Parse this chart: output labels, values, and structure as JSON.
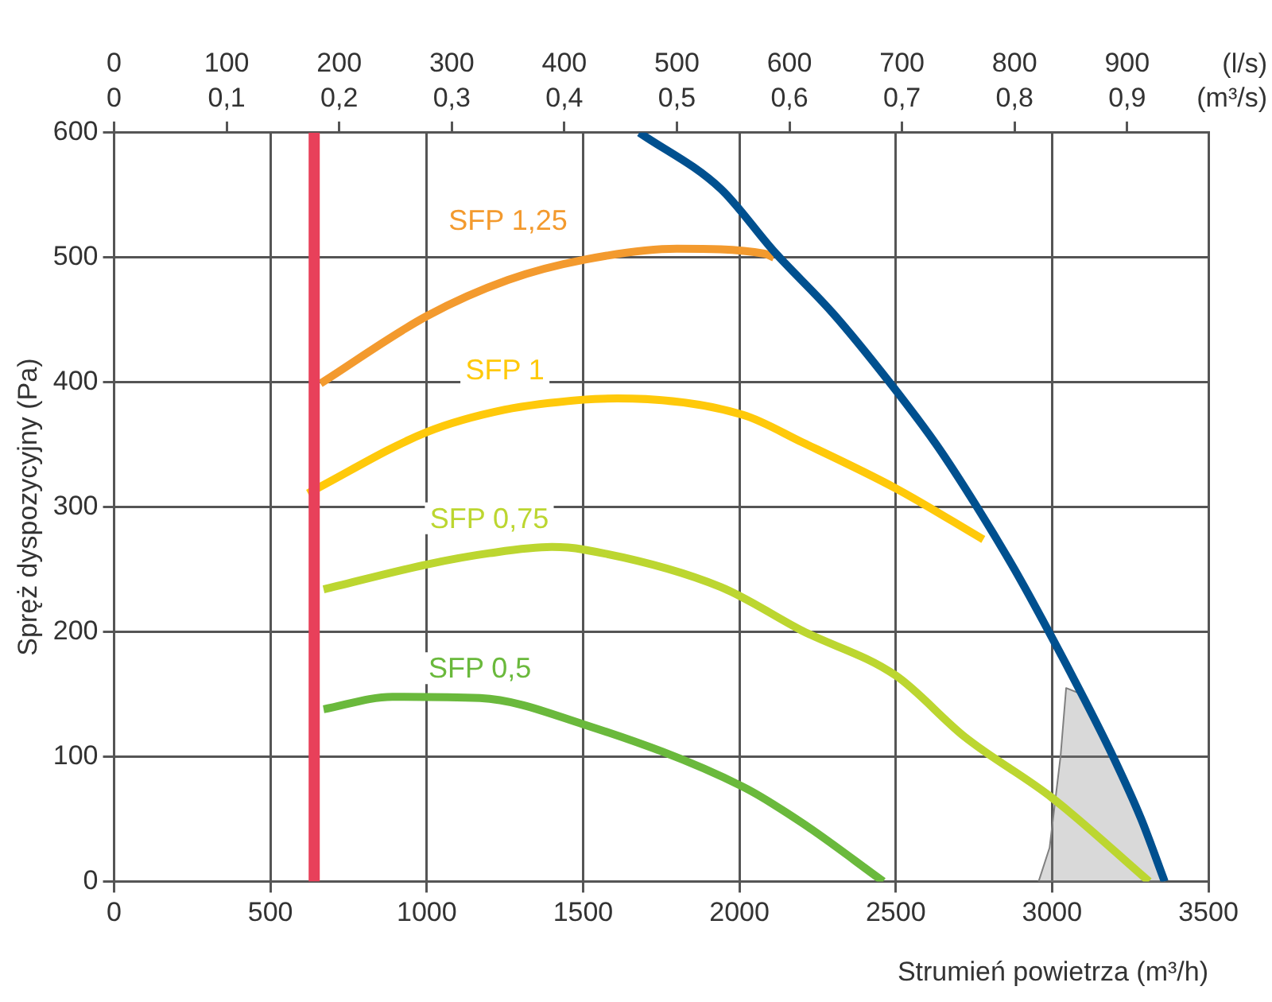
{
  "chart_data": {
    "type": "line",
    "xlabel": "Strumień powietrza (m³/h)",
    "ylabel": "Spręż dyspozycyjny (Pa)",
    "x2label": "(l/s)",
    "annotations": [
      "(m³/s)",
      "0",
      "0,1",
      "0,2",
      "0,3",
      "0,4",
      "0,5",
      "0,6",
      "0,7",
      "0,8",
      "0,9"
    ],
    "xlim": [
      0,
      3500
    ],
    "xticks": [
      0,
      500,
      1000,
      1500,
      2000,
      2500,
      3000,
      3500
    ],
    "x2lim": [
      0,
      972.2
    ],
    "x2ticks": [
      0,
      100,
      200,
      300,
      400,
      500,
      600,
      700,
      800,
      900
    ],
    "ylim": [
      0,
      600
    ],
    "yticks": [
      0,
      100,
      200,
      300,
      400,
      500,
      600
    ],
    "grid": true,
    "legend": false,
    "marker": "none",
    "line_style": "solid",
    "series": [
      {
        "color": "#e8405a",
        "x": [
          640,
          640
        ],
        "values": [
          0,
          600
        ]
      },
      {
        "color": "#00508f",
        "x": [
          1680,
          1940,
          2110,
          2300,
          2480,
          2630,
          2760,
          2880,
          2990,
          3095,
          3195,
          3285,
          3360
        ],
        "values": [
          600,
          555,
          505,
          455,
          400,
          350,
          300,
          250,
          200,
          150,
          100,
          50,
          0
        ]
      },
      {
        "name": "SFP 1,25",
        "color": "#f39a2e",
        "x": [
          660,
          1000,
          1260,
          1500,
          1800,
          2080,
          2110
        ],
        "values": [
          399,
          453,
          482,
          498,
          507,
          503,
          500
        ]
      },
      {
        "name": "SFP 1",
        "color": "#ffc90a",
        "x": [
          620,
          1000,
          1250,
          1500,
          1610,
          2010,
          2200,
          2500,
          2780
        ],
        "values": [
          311,
          360,
          378,
          386,
          387,
          374,
          352,
          315,
          274
        ]
      },
      {
        "name": "SFP 0,75",
        "color": "#bcd630",
        "x": [
          670,
          1000,
          1200,
          1400,
          1500,
          1940,
          2200,
          2500,
          2720,
          3000,
          3310
        ],
        "values": [
          234,
          254,
          263,
          268,
          266,
          236,
          201,
          165,
          116,
          67,
          0
        ]
      },
      {
        "name": "SFP 0,5",
        "color": "#6ab93c",
        "x": [
          670,
          890,
          1170,
          1500,
          2010,
          2200,
          2460
        ],
        "values": [
          138,
          148,
          147,
          126,
          76,
          47,
          0
        ]
      },
      {
        "type": "area",
        "color": "#808080",
        "x": [
          2957,
          2992,
          3027,
          3045,
          3095,
          3195,
          3285,
          3360,
          2957
        ],
        "values": [
          0,
          27,
          100,
          155,
          150,
          100,
          50,
          0,
          0
        ]
      }
    ]
  }
}
